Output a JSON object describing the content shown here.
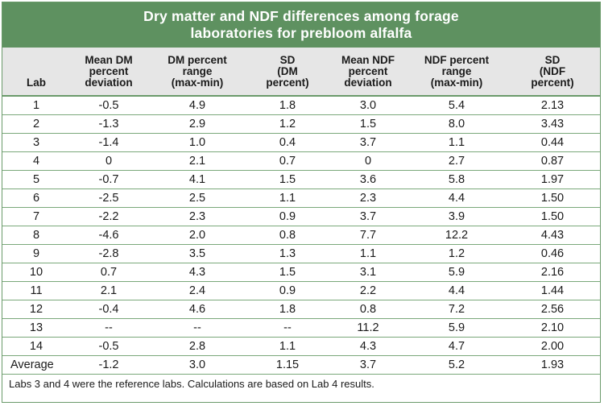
{
  "title": {
    "line1": "Dry matter and NDF differences among forage",
    "line2": "laboratories for prebloom alfalfa"
  },
  "columns": [
    [
      "Lab"
    ],
    [
      "Mean DM",
      "percent",
      "deviation"
    ],
    [
      "DM percent",
      "range",
      "(max-min)"
    ],
    [
      "SD",
      "(DM",
      "percent)"
    ],
    [
      "Mean NDF",
      "percent",
      "deviation"
    ],
    [
      "NDF percent",
      "range",
      "(max-min)"
    ],
    [
      "SD",
      "(NDF",
      "percent)"
    ]
  ],
  "rows": [
    [
      "1",
      "-0.5",
      "4.9",
      "1.8",
      "3.0",
      "5.4",
      "2.13"
    ],
    [
      "2",
      "-1.3",
      "2.9",
      "1.2",
      "1.5",
      "8.0",
      "3.43"
    ],
    [
      "3",
      "-1.4",
      "1.0",
      "0.4",
      "3.7",
      "1.1",
      "0.44"
    ],
    [
      "4",
      "0",
      "2.1",
      "0.7",
      "0",
      "2.7",
      "0.87"
    ],
    [
      "5",
      "-0.7",
      "4.1",
      "1.5",
      "3.6",
      "5.8",
      "1.97"
    ],
    [
      "6",
      "-2.5",
      "2.5",
      "1.1",
      "2.3",
      "4.4",
      "1.50"
    ],
    [
      "7",
      "-2.2",
      "2.3",
      "0.9",
      "3.7",
      "3.9",
      "1.50"
    ],
    [
      "8",
      "-4.6",
      "2.0",
      "0.8",
      "7.7",
      "12.2",
      "4.43"
    ],
    [
      "9",
      "-2.8",
      "3.5",
      "1.3",
      "1.1",
      "1.2",
      "0.46"
    ],
    [
      "10",
      "0.7",
      "4.3",
      "1.5",
      "3.1",
      "5.9",
      "2.16"
    ],
    [
      "11",
      "2.1",
      "2.4",
      "0.9",
      "2.2",
      "4.4",
      "1.44"
    ],
    [
      "12",
      "-0.4",
      "4.6",
      "1.8",
      "0.8",
      "7.2",
      "2.56"
    ],
    [
      "13",
      "--",
      "--",
      "--",
      "11.2",
      "5.9",
      "2.10"
    ],
    [
      "14",
      "-0.5",
      "2.8",
      "1.1",
      "4.3",
      "4.7",
      "2.00"
    ]
  ],
  "average": [
    "Average",
    "-1.2",
    "3.0",
    "1.15",
    "3.7",
    "5.2",
    "1.93"
  ],
  "footnote": "Labs 3 and 4 were the reference labs. Calculations are based on Lab 4 results.",
  "colors": {
    "title_background": "#5e9160",
    "header_background": "#e6e6e6",
    "rule": "#7aa87a"
  }
}
